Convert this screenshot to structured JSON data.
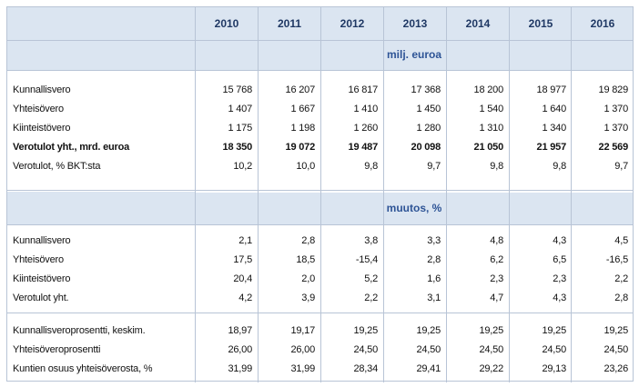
{
  "years": [
    "2010",
    "2011",
    "2012",
    "2013",
    "2014",
    "2015",
    "2016"
  ],
  "section1": {
    "unit": "milj. euroa",
    "rows": [
      {
        "label": "Kunnallisvero",
        "values": [
          "15 768",
          "16 207",
          "16 817",
          "17 368",
          "18 200",
          "18 977",
          "19 829"
        ],
        "bold": false
      },
      {
        "label": "Yhteisövero",
        "values": [
          "1 407",
          "1 667",
          "1 410",
          "1 450",
          "1 540",
          "1 640",
          "1 370"
        ],
        "bold": false
      },
      {
        "label": "Kiinteistövero",
        "values": [
          "1 175",
          "1 198",
          "1 260",
          "1 280",
          "1 310",
          "1 340",
          "1 370"
        ],
        "bold": false
      },
      {
        "label": "Verotulot yht., mrd. euroa",
        "values": [
          "18 350",
          "19 072",
          "19 487",
          "20 098",
          "21 050",
          "21 957",
          "22 569"
        ],
        "bold": true
      },
      {
        "label": "Verotulot, % BKT:sta",
        "values": [
          "10,2",
          "10,0",
          "9,8",
          "9,7",
          "9,8",
          "9,8",
          "9,7"
        ],
        "bold": false
      }
    ]
  },
  "section2": {
    "unit": "muutos, %",
    "rows": [
      {
        "label": "Kunnallisvero",
        "values": [
          "2,1",
          "2,8",
          "3,8",
          "3,3",
          "4,8",
          "4,3",
          "4,5"
        ],
        "bold": false
      },
      {
        "label": "Yhteisövero",
        "values": [
          "17,5",
          "18,5",
          "-15,4",
          "2,8",
          "6,2",
          "6,5",
          "-16,5"
        ],
        "bold": false
      },
      {
        "label": "Kiinteistövero",
        "values": [
          "20,4",
          "2,0",
          "5,2",
          "1,6",
          "2,3",
          "2,3",
          "2,2"
        ],
        "bold": false
      },
      {
        "label": "Verotulot yht.",
        "values": [
          "4,2",
          "3,9",
          "2,2",
          "3,1",
          "4,7",
          "4,3",
          "2,8"
        ],
        "bold": false
      }
    ]
  },
  "section3": {
    "rows": [
      {
        "label": "Kunnallisveroprosentti, keskim.",
        "values": [
          "18,97",
          "19,17",
          "19,25",
          "19,25",
          "19,25",
          "19,25",
          "19,25"
        ],
        "bold": false
      },
      {
        "label": "Yhteisöveroprosentti",
        "values": [
          "26,00",
          "26,00",
          "24,50",
          "24,50",
          "24,50",
          "24,50",
          "24,50"
        ],
        "bold": false
      },
      {
        "label": "Kuntien osuus yhteisöverosta, %",
        "values": [
          "31,99",
          "31,99",
          "28,34",
          "29,41",
          "29,22",
          "29,13",
          "23,26"
        ],
        "bold": false
      }
    ]
  }
}
